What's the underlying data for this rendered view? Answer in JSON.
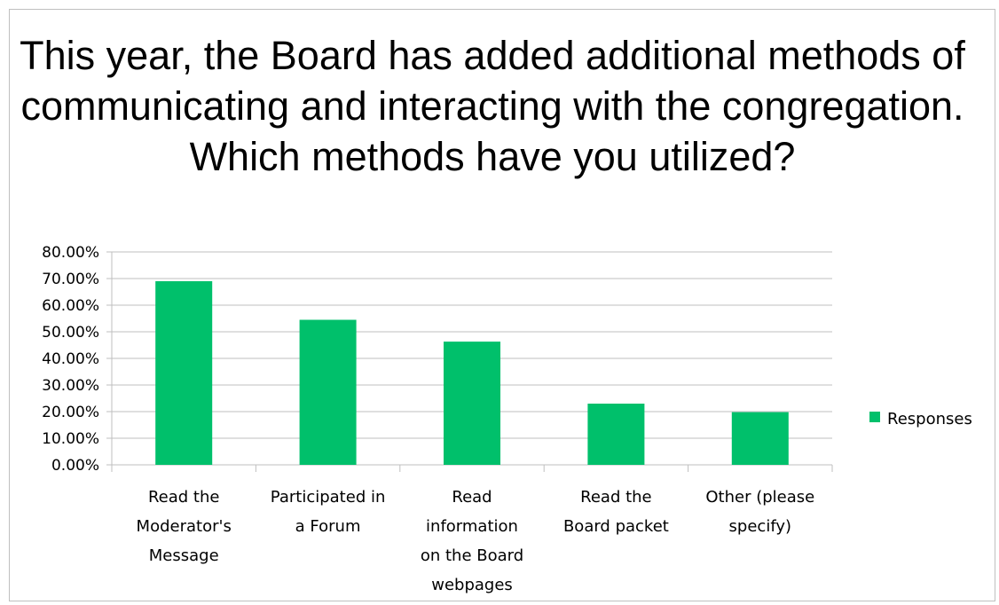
{
  "chart_data": {
    "type": "bar",
    "title": "This year, the Board has added additional methods of communicating and interacting with the congregation. Which methods have you utilized?",
    "categories": [
      [
        "Read the",
        "Moderator's",
        "Message"
      ],
      [
        "Participated in",
        "a Forum"
      ],
      [
        "Read",
        "information",
        "on the Board",
        "webpages"
      ],
      [
        "Read the",
        "Board packet"
      ],
      [
        "Other (please",
        "specify)"
      ]
    ],
    "series": [
      {
        "name": "Responses",
        "values": [
          69.0,
          54.5,
          46.3,
          23.0,
          19.8
        ],
        "color": "#00c06b"
      }
    ],
    "ylim": [
      0,
      80
    ],
    "yticks": [
      "0.00%",
      "10.00%",
      "20.00%",
      "30.00%",
      "40.00%",
      "50.00%",
      "60.00%",
      "70.00%",
      "80.00%"
    ],
    "grid": true,
    "legend_position": "right"
  }
}
